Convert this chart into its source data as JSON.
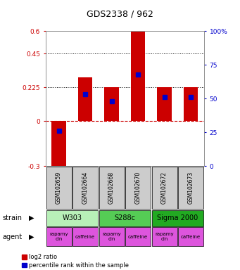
{
  "title": "GDS2338 / 962",
  "samples": [
    "GSM102659",
    "GSM102664",
    "GSM102668",
    "GSM102670",
    "GSM102672",
    "GSM102673"
  ],
  "log2_ratio": [
    -0.32,
    0.29,
    0.225,
    0.595,
    0.225,
    0.225
  ],
  "percentile": [
    26,
    53,
    48,
    68,
    51,
    51
  ],
  "ylim_left": [
    -0.3,
    0.6
  ],
  "yticks_left": [
    -0.3,
    0,
    0.225,
    0.45,
    0.6
  ],
  "ytick_labels_left": [
    "-0.3",
    "0",
    "0.225",
    "0.45",
    "0.6"
  ],
  "ylim_right": [
    0,
    100
  ],
  "yticks_right": [
    0,
    25,
    50,
    75,
    100
  ],
  "ytick_labels_right": [
    "0",
    "25",
    "50",
    "75",
    "100%"
  ],
  "hlines": [
    0.225,
    0.45
  ],
  "strains": [
    {
      "label": "W303",
      "cols": [
        0,
        1
      ],
      "color": "#b8f0b8"
    },
    {
      "label": "S288c",
      "cols": [
        2,
        3
      ],
      "color": "#55cc55"
    },
    {
      "label": "Sigma 2000",
      "cols": [
        4,
        5
      ],
      "color": "#22aa22"
    }
  ],
  "agents": [
    "rapamycin",
    "caffeine",
    "rapamycin",
    "caffeine",
    "rapamycin",
    "caffeine"
  ],
  "agent_color": "#dd55dd",
  "bar_color_red": "#cc0000",
  "bar_color_blue": "#0000cc",
  "legend_red": "log2 ratio",
  "legend_blue": "percentile rank within the sample",
  "left_label_color": "#cc0000",
  "right_label_color": "#0000cc",
  "sample_bg": "#cccccc",
  "zero_dashed_color": "#cc0000"
}
